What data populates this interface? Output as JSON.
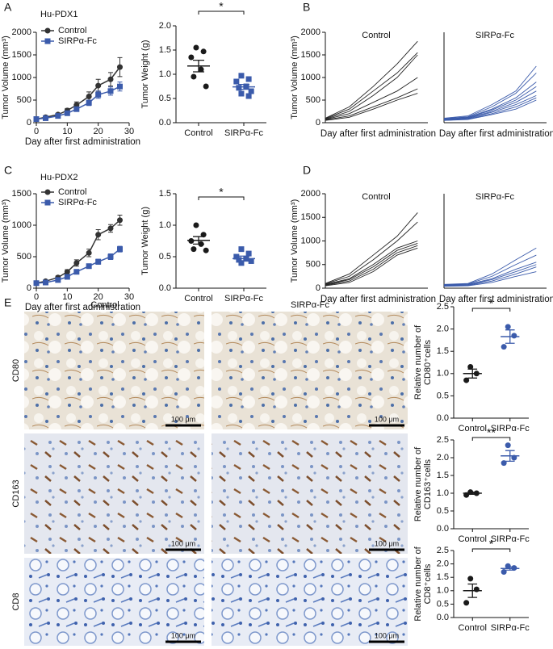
{
  "panel_labels": [
    "A",
    "B",
    "C",
    "D",
    "E"
  ],
  "chart_data": [
    {
      "type": "line",
      "title": "Hu-PDX1",
      "xlabel": "Day after first administration",
      "ylabel": "Tumor Volume (mm³)",
      "x": [
        0,
        3,
        7,
        10,
        13,
        17,
        20,
        24,
        27
      ],
      "xlim": [
        0,
        30
      ],
      "xticks": [
        0,
        10,
        20,
        30
      ],
      "ylim": [
        0,
        2000
      ],
      "yticks": [
        0,
        500,
        1000,
        1500,
        2000
      ],
      "legend": "upper left",
      "series": [
        {
          "name": "Control",
          "color": "#333333",
          "marker": "circle",
          "values": [
            80,
            120,
            180,
            270,
            390,
            580,
            820,
            960,
            1230
          ],
          "errors": [
            20,
            25,
            30,
            45,
            70,
            100,
            140,
            150,
            210
          ]
        },
        {
          "name": "SIRPα-Fc",
          "color": "#3b5bab",
          "marker": "square",
          "values": [
            80,
            100,
            150,
            210,
            300,
            440,
            620,
            700,
            800
          ],
          "errors": [
            15,
            20,
            25,
            30,
            45,
            60,
            80,
            90,
            100
          ]
        }
      ]
    },
    {
      "type": "dot",
      "ylabel": "Tumor Weight (g)",
      "categories": [
        "Control",
        "SIRPα-Fc"
      ],
      "colors": [
        "#1a1a1a",
        "#3b5bab"
      ],
      "markers": [
        "circle",
        "square"
      ],
      "ylim": [
        0,
        2
      ],
      "yticks": [
        {
          "value": 0,
          "label": "0.0"
        },
        {
          "value": 0.5,
          "label": "0.5"
        },
        {
          "value": 1,
          "label": "1.0"
        },
        {
          "value": 1.5,
          "label": "1.5"
        },
        {
          "value": 2,
          "label": "2.0"
        }
      ],
      "points": [
        [
          1.55,
          1.47,
          1.35,
          1.1,
          0.95,
          0.75
        ],
        [
          0.97,
          0.9,
          0.85,
          0.75,
          0.72,
          0.65,
          0.6,
          0.55
        ]
      ],
      "means": [
        1.17,
        0.74
      ],
      "sems": [
        0.12,
        0.05
      ],
      "significance": "*"
    },
    {
      "type": "line",
      "title": "Control",
      "xlabel": "Day after first administration",
      "ylabel": "Tumor Volume (mm³)",
      "x": [
        0,
        7,
        14,
        21,
        27
      ],
      "xlim": [
        0,
        30
      ],
      "ylim": [
        0,
        2000
      ],
      "yticks": [
        0,
        500,
        1000,
        1500,
        2000
      ],
      "series": [
        {
          "color": "#222222",
          "values": [
            100,
            350,
            800,
            1300,
            1800
          ]
        },
        {
          "color": "#222222",
          "values": [
            90,
            300,
            700,
            1100,
            1550
          ]
        },
        {
          "color": "#222222",
          "values": [
            80,
            250,
            600,
            1000,
            1500
          ]
        },
        {
          "color": "#222222",
          "values": [
            70,
            200,
            450,
            700,
            1000
          ]
        },
        {
          "color": "#222222",
          "values": [
            60,
            150,
            350,
            550,
            750
          ]
        },
        {
          "color": "#222222",
          "values": [
            50,
            120,
            300,
            500,
            650
          ]
        }
      ]
    },
    {
      "type": "line",
      "title": "SIRPα-Fc",
      "xlabel": "Day after first administration",
      "x": [
        0,
        7,
        14,
        21,
        27
      ],
      "xlim": [
        0,
        30
      ],
      "ylim": [
        0,
        2000
      ],
      "series": [
        {
          "color": "#3b5bab",
          "values": [
            100,
            150,
            400,
            700,
            1250
          ]
        },
        {
          "color": "#3b5bab",
          "values": [
            90,
            130,
            350,
            650,
            1100
          ]
        },
        {
          "color": "#3b5bab",
          "values": [
            80,
            120,
            300,
            550,
            900
          ]
        },
        {
          "color": "#3b5bab",
          "values": [
            70,
            110,
            280,
            500,
            800
          ]
        },
        {
          "color": "#3b5bab",
          "values": [
            60,
            100,
            250,
            450,
            700
          ]
        },
        {
          "color": "#3b5bab",
          "values": [
            60,
            90,
            230,
            400,
            600
          ]
        },
        {
          "color": "#3b5bab",
          "values": [
            50,
            80,
            200,
            350,
            550
          ]
        },
        {
          "color": "#3b5bab",
          "values": [
            50,
            70,
            180,
            300,
            500
          ]
        }
      ]
    },
    {
      "type": "line",
      "title": "Hu-PDX2",
      "xlabel": "Day after first administration",
      "ylabel": "Tumor Volume (mm³)",
      "x": [
        0,
        3,
        7,
        10,
        13,
        17,
        20,
        24,
        27
      ],
      "xlim": [
        0,
        30
      ],
      "xticks": [
        0,
        10,
        20,
        30
      ],
      "ylim": [
        0,
        1500
      ],
      "yticks": [
        0,
        500,
        1000,
        1500
      ],
      "legend": "upper left",
      "series": [
        {
          "name": "Control",
          "color": "#333333",
          "marker": "circle",
          "values": [
            80,
            110,
            170,
            260,
            400,
            560,
            850,
            950,
            1080
          ],
          "errors": [
            15,
            20,
            25,
            35,
            50,
            60,
            80,
            60,
            80
          ]
        },
        {
          "name": "SIRPα-Fc",
          "color": "#3b5bab",
          "marker": "square",
          "values": [
            80,
            90,
            130,
            180,
            260,
            350,
            420,
            500,
            620
          ],
          "errors": [
            10,
            12,
            15,
            20,
            30,
            35,
            40,
            45,
            45
          ]
        }
      ]
    },
    {
      "type": "dot",
      "ylabel": "Tumor Weight (g)",
      "categories": [
        "Control",
        "SIRPα-Fc"
      ],
      "colors": [
        "#1a1a1a",
        "#3b5bab"
      ],
      "markers": [
        "circle",
        "square"
      ],
      "ylim": [
        0,
        1.5
      ],
      "yticks": [
        {
          "value": 0,
          "label": "0.0"
        },
        {
          "value": 0.5,
          "label": "0.5"
        },
        {
          "value": 1,
          "label": "1.0"
        },
        {
          "value": 1.5,
          "label": "1.5"
        }
      ],
      "points": [
        [
          1.0,
          0.85,
          0.75,
          0.7,
          0.62,
          0.6
        ],
        [
          0.62,
          0.55,
          0.5,
          0.47,
          0.45,
          0.43,
          0.4
        ]
      ],
      "means": [
        0.76,
        0.47
      ],
      "sems": [
        0.06,
        0.04
      ],
      "significance": "*"
    },
    {
      "type": "line",
      "title": "Control",
      "xlabel": "Day after first administration",
      "ylabel": "Tumor Volume (mm³)",
      "x": [
        0,
        7,
        14,
        21,
        27
      ],
      "xlim": [
        0,
        30
      ],
      "ylim": [
        0,
        2000
      ],
      "yticks": [
        0,
        500,
        1000,
        1500,
        2000
      ],
      "series": [
        {
          "color": "#222222",
          "values": [
            100,
            300,
            700,
            1100,
            1600
          ]
        },
        {
          "color": "#222222",
          "values": [
            90,
            250,
            600,
            1000,
            1400
          ]
        },
        {
          "color": "#222222",
          "values": [
            80,
            200,
            500,
            850,
            1000
          ]
        },
        {
          "color": "#222222",
          "values": [
            70,
            180,
            450,
            800,
            950
          ]
        },
        {
          "color": "#222222",
          "values": [
            60,
            150,
            400,
            750,
            900
          ]
        },
        {
          "color": "#222222",
          "values": [
            50,
            120,
            350,
            700,
            850
          ]
        }
      ]
    },
    {
      "type": "line",
      "title": "SIRPα-Fc",
      "xlabel": "Day after first administration",
      "x": [
        0,
        7,
        14,
        21,
        27
      ],
      "xlim": [
        0,
        30
      ],
      "ylim": [
        0,
        2000
      ],
      "series": [
        {
          "color": "#3b5bab",
          "values": [
            80,
            100,
            300,
            600,
            850
          ]
        },
        {
          "color": "#3b5bab",
          "values": [
            70,
            90,
            250,
            500,
            700
          ]
        },
        {
          "color": "#3b5bab",
          "values": [
            60,
            80,
            200,
            400,
            550
          ]
        },
        {
          "color": "#3b5bab",
          "values": [
            60,
            70,
            180,
            350,
            500
          ]
        },
        {
          "color": "#3b5bab",
          "values": [
            50,
            60,
            150,
            300,
            450
          ]
        },
        {
          "color": "#3b5bab",
          "values": [
            40,
            50,
            120,
            250,
            350
          ]
        }
      ]
    },
    {
      "type": "dot",
      "ylabel": [
        "Relative number of",
        "CD80⁺cells"
      ],
      "categories": [
        "Control",
        "SIRPα-Fc"
      ],
      "colors": [
        "#1a1a1a",
        "#3b5bab"
      ],
      "markers": [
        "circle",
        "circle"
      ],
      "ylim": [
        0,
        2.5
      ],
      "yticks": [
        {
          "value": 0,
          "label": "0.0"
        },
        {
          "value": 0.5,
          "label": "0.5"
        },
        {
          "value": 1,
          "label": "1.0"
        },
        {
          "value": 1.5,
          "label": "1.5"
        },
        {
          "value": 2,
          "label": "2.0"
        },
        {
          "value": 2.5,
          "label": "2.5"
        }
      ],
      "points": [
        [
          1.15,
          1.0,
          0.85
        ],
        [
          2.05,
          1.85,
          1.6
        ]
      ],
      "means": [
        1.0,
        1.83
      ],
      "sems": [
        0.1,
        0.15
      ],
      "significance": "*"
    },
    {
      "type": "dot",
      "ylabel": [
        "Relative number of",
        "CD163⁺cells"
      ],
      "categories": [
        "Control",
        "SIRPα-Fc"
      ],
      "colors": [
        "#1a1a1a",
        "#3b5bab"
      ],
      "markers": [
        "circle",
        "circle"
      ],
      "ylim": [
        0,
        2.5
      ],
      "yticks": [
        {
          "value": 0,
          "label": "0.0"
        },
        {
          "value": 0.5,
          "label": "0.5"
        },
        {
          "value": 1,
          "label": "1.0"
        },
        {
          "value": 1.5,
          "label": "1.5"
        },
        {
          "value": 2,
          "label": "2.0"
        },
        {
          "value": 2.5,
          "label": "2.5"
        }
      ],
      "points": [
        [
          1.03,
          1.0,
          0.95
        ],
        [
          2.35,
          2.0,
          1.85
        ]
      ],
      "means": [
        1.0,
        2.05
      ],
      "sems": [
        0.03,
        0.15
      ],
      "significance": "**"
    },
    {
      "type": "dot",
      "ylabel": [
        "Relative number of",
        "CD8⁺cells"
      ],
      "categories": [
        "Control",
        "SIRPα-Fc"
      ],
      "colors": [
        "#1a1a1a",
        "#3b5bab"
      ],
      "markers": [
        "circle",
        "circle"
      ],
      "ylim": [
        0,
        2.5
      ],
      "yticks": [
        {
          "value": 0,
          "label": "0.0"
        },
        {
          "value": 0.5,
          "label": "0.5"
        },
        {
          "value": 1,
          "label": "1.0"
        },
        {
          "value": 1.5,
          "label": "1.5"
        },
        {
          "value": 2,
          "label": "2.0"
        },
        {
          "value": 2.5,
          "label": "2.5"
        }
      ],
      "points": [
        [
          1.45,
          1.05,
          0.55
        ],
        [
          1.92,
          1.85,
          1.7
        ]
      ],
      "means": [
        1.0,
        1.83
      ],
      "sems": [
        0.25,
        0.06
      ],
      "significance": "*"
    }
  ],
  "histology": {
    "columns": [
      "Control",
      "SIRPα-Fc"
    ],
    "rows": [
      {
        "label": "CD80",
        "scale_bars": [
          "100 μm",
          "100 μm"
        ]
      },
      {
        "label": "CD163",
        "scale_bars": [
          "100 μm",
          "100 μm"
        ]
      },
      {
        "label": "CD8",
        "scale_bars": [
          "100 μm",
          "100 μm"
        ]
      }
    ]
  }
}
